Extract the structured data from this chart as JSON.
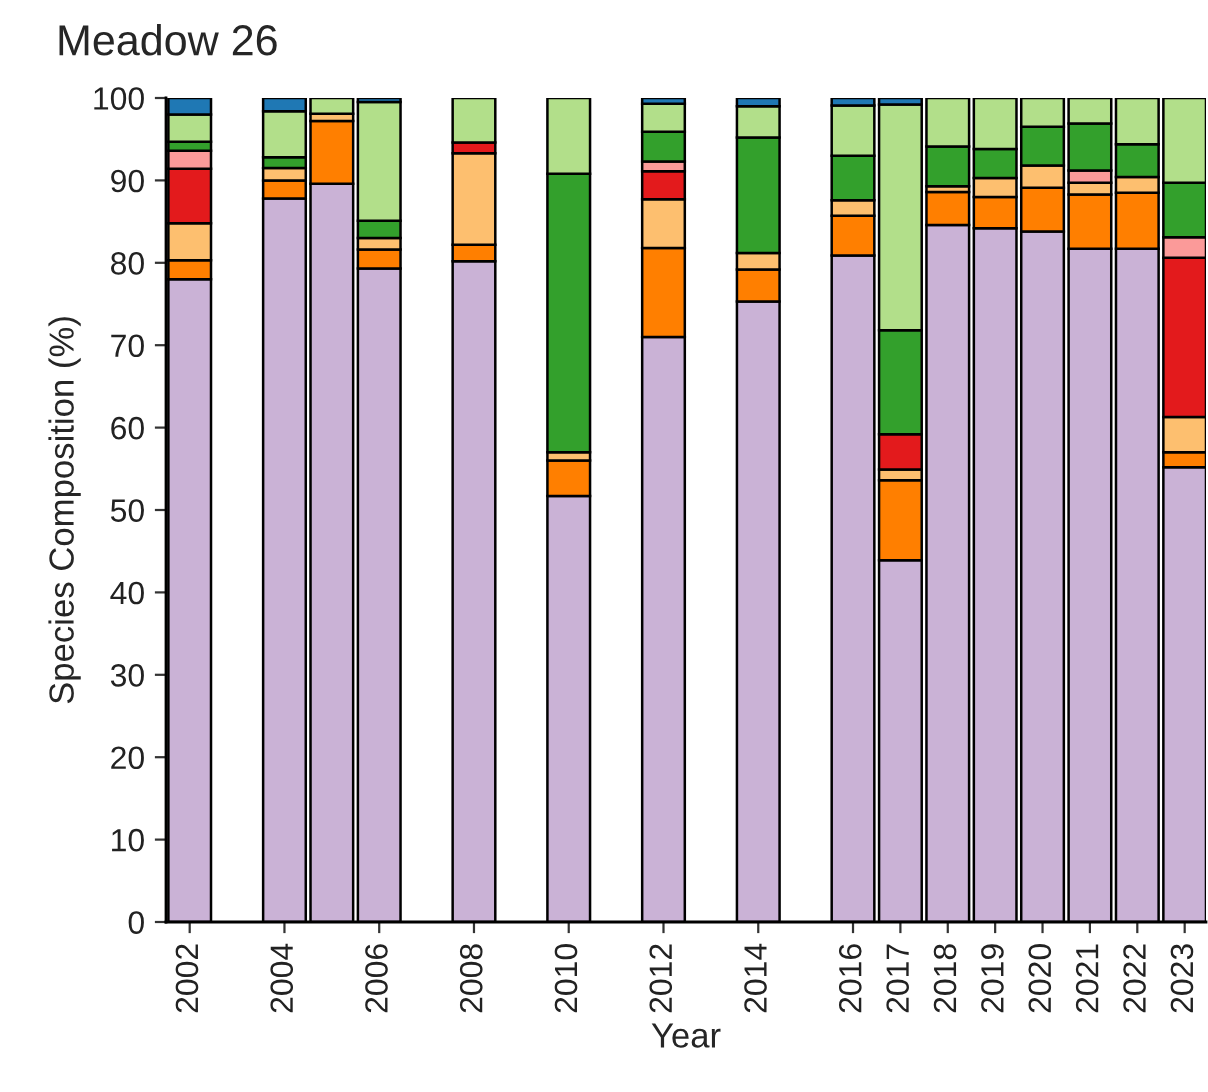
{
  "chart_data": {
    "type": "bar",
    "title": "Meadow 26",
    "xlabel": "Year",
    "ylabel": "Species Composition (%)",
    "stacked": true,
    "x": [
      2002,
      2004,
      2005,
      2006,
      2008,
      2010,
      2012,
      2014,
      2016,
      2017,
      2018,
      2019,
      2020,
      2021,
      2022,
      2023
    ],
    "xlim": [
      2001.5,
      2023.45
    ],
    "xticks": [
      2002,
      2004,
      2006,
      2008,
      2010,
      2012,
      2014,
      2016,
      2017,
      2018,
      2019,
      2020,
      2021,
      2022,
      2023
    ],
    "ylim": [
      0,
      100
    ],
    "yticks": [
      0,
      10,
      20,
      30,
      40,
      50,
      60,
      70,
      80,
      90,
      100
    ],
    "series": [
      {
        "color": "#cab2d6",
        "values": [
          78.0,
          87.8,
          89.6,
          79.3,
          80.2,
          51.7,
          71.0,
          75.3,
          80.9,
          43.9,
          84.6,
          84.2,
          83.8,
          81.7,
          81.7,
          55.2
        ]
      },
      {
        "color": "#ff7f00",
        "values": [
          2.3,
          2.2,
          7.6,
          2.3,
          2.0,
          4.3,
          10.8,
          3.9,
          4.8,
          9.7,
          4.0,
          3.8,
          5.3,
          6.6,
          6.8,
          1.8
        ]
      },
      {
        "color": "#fdbf6f",
        "values": [
          4.5,
          1.5,
          0.9,
          1.4,
          11.1,
          1.0,
          5.9,
          2.0,
          1.9,
          1.3,
          0.7,
          2.3,
          2.7,
          1.4,
          1.9,
          4.3
        ]
      },
      {
        "color": "#e31a1c",
        "values": [
          6.6,
          null,
          null,
          null,
          1.3,
          null,
          3.4,
          null,
          null,
          4.3,
          null,
          null,
          null,
          null,
          null,
          19.3
        ]
      },
      {
        "color": "#fb9a99",
        "values": [
          2.2,
          null,
          null,
          null,
          null,
          null,
          1.2,
          null,
          null,
          null,
          null,
          null,
          null,
          1.5,
          null,
          2.5
        ]
      },
      {
        "color": "#33a02c",
        "values": [
          1.1,
          1.3,
          null,
          2.1,
          null,
          33.8,
          3.6,
          14.0,
          5.4,
          12.6,
          4.8,
          3.5,
          4.7,
          5.7,
          4.0,
          6.6
        ]
      },
      {
        "color": "#b2df8a",
        "values": [
          3.3,
          5.6,
          1.9,
          14.4,
          5.4,
          9.2,
          3.4,
          3.8,
          6.1,
          27.4,
          5.9,
          6.2,
          3.5,
          3.1,
          5.6,
          10.3
        ]
      },
      {
        "color": "#1f78b4",
        "values": [
          2.0,
          1.6,
          null,
          0.5,
          null,
          null,
          0.7,
          1.0,
          0.9,
          0.8,
          null,
          null,
          null,
          null,
          null,
          null
        ]
      }
    ]
  }
}
